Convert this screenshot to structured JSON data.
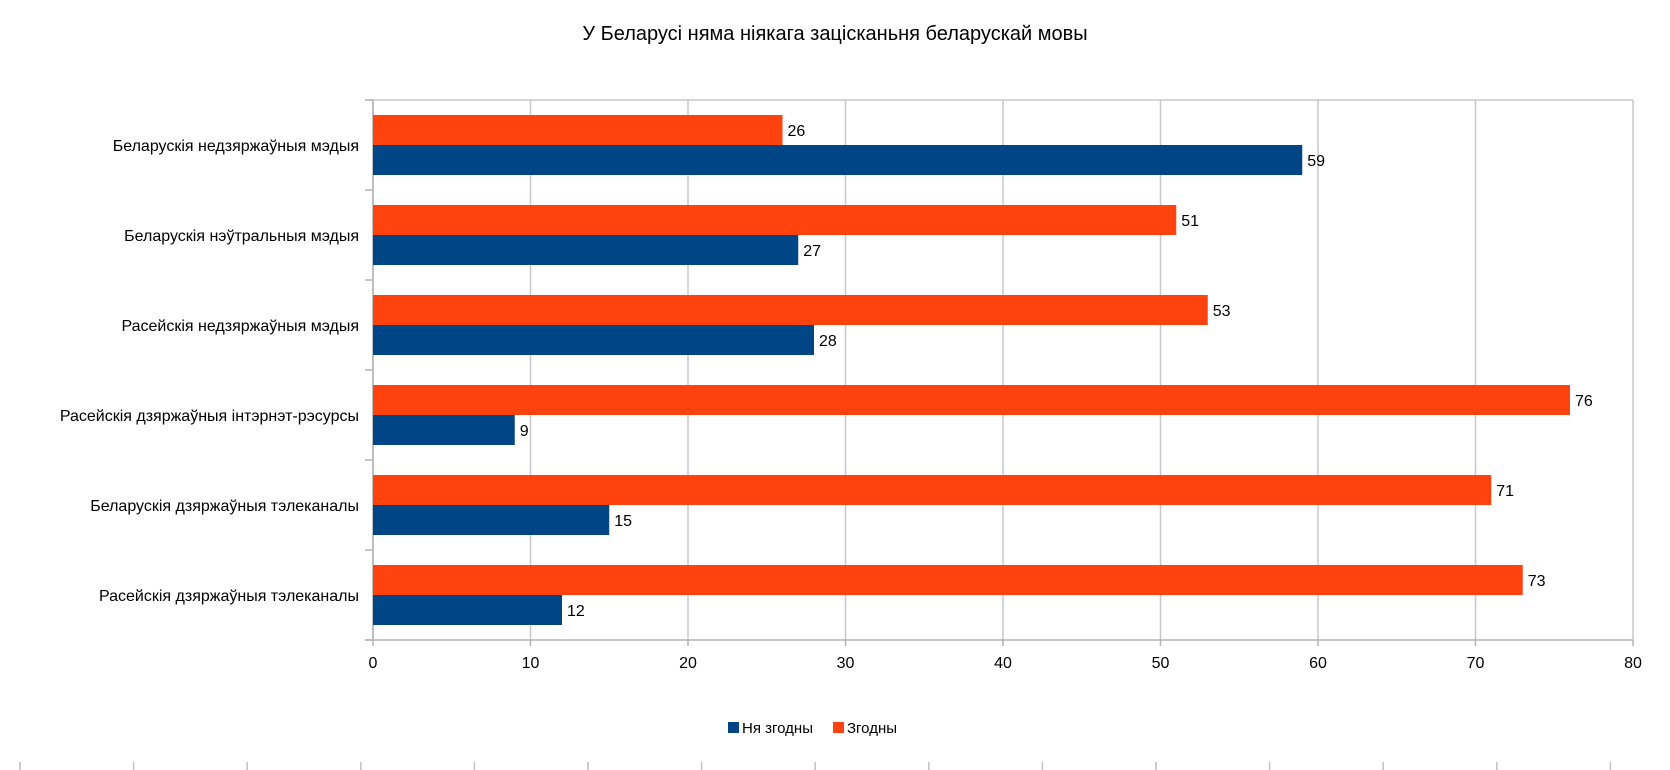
{
  "chart_data": {
    "type": "bar",
    "orientation": "horizontal",
    "title": "У Беларусі няма ніякага зацісканьня беларускай мовы",
    "xlabel": "",
    "ylabel": "",
    "categories": [
      "Беларускія недзяржаўныя мэдыя",
      "Беларускія нэўтральныя мэдыя",
      "Расейскія недзяржаўныя мэдыя",
      "Расейскія дзяржаўныя інтэрнэт-рэсурсы",
      "Беларускія дзяржаўныя тэлеканалы",
      "Расейскія дзяржаўныя тэлеканалы"
    ],
    "series": [
      {
        "name": "Ня згодны",
        "color": "#004586",
        "values": [
          59,
          27,
          28,
          9,
          15,
          12
        ]
      },
      {
        "name": "Згодны",
        "color": "#ff420e",
        "values": [
          26,
          51,
          53,
          76,
          71,
          73
        ]
      }
    ],
    "xlim": [
      0,
      80
    ],
    "xticks": [
      0,
      10,
      20,
      30,
      40,
      50,
      60,
      70,
      80
    ],
    "grid": true,
    "data_labels": true,
    "legend": {
      "placement": "bottom",
      "entries": [
        "Ня згодны",
        "Згодны"
      ]
    }
  }
}
